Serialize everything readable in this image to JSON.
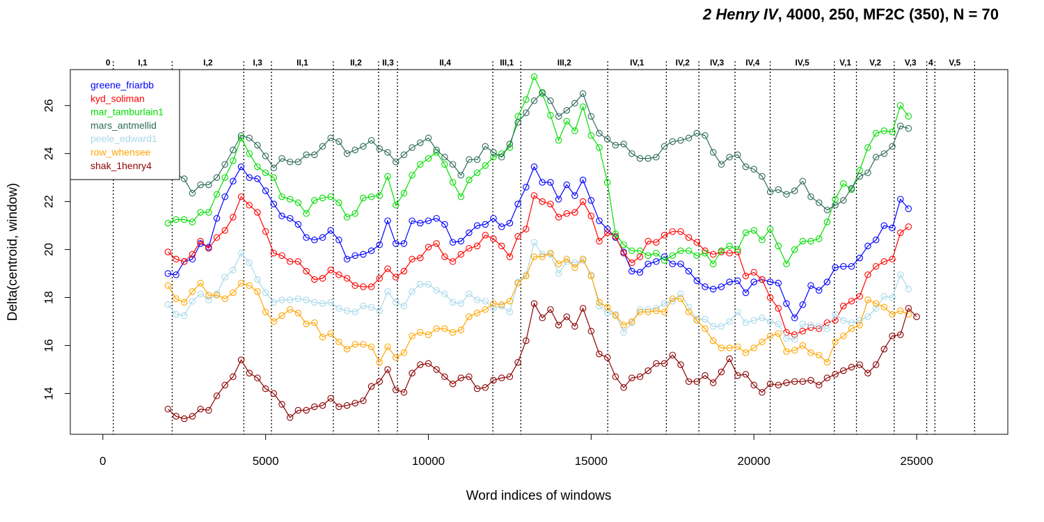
{
  "chart_data": {
    "type": "line",
    "title_italic": "2 Henry IV",
    "title_rest": ", 4000, 250, MF2C (350), N = 70",
    "xlabel": "Word indices of windows",
    "ylabel": "Delta(centroid, window)",
    "xlim": [
      -1000,
      27800
    ],
    "ylim": [
      12.3,
      27.5
    ],
    "xticks": [
      0,
      5000,
      10000,
      15000,
      20000,
      25000
    ],
    "xtick_labels": [
      "0",
      "5000",
      "10000",
      "15000",
      "20000",
      "25000"
    ],
    "yticks": [
      14,
      16,
      18,
      20,
      22,
      24,
      26
    ],
    "ytick_labels": [
      "14",
      "16",
      "18",
      "20",
      "22",
      "24",
      "26"
    ],
    "legend_position": "top-left",
    "scenes": [
      {
        "label": "0",
        "start": 0,
        "end": 320
      },
      {
        "label": "I,1",
        "start": 320,
        "end": 2130
      },
      {
        "label": "I,2",
        "start": 2130,
        "end": 4330
      },
      {
        "label": "I,3",
        "start": 4330,
        "end": 5180
      },
      {
        "label": "II,1",
        "start": 5180,
        "end": 7080
      },
      {
        "label": "II,2",
        "start": 7080,
        "end": 8470
      },
      {
        "label": "II,3",
        "start": 8470,
        "end": 9050
      },
      {
        "label": "II,4",
        "start": 9050,
        "end": 11980
      },
      {
        "label": "III,1",
        "start": 11980,
        "end": 12840
      },
      {
        "label": "III,2",
        "start": 12840,
        "end": 15510
      },
      {
        "label": "IV,1",
        "start": 15510,
        "end": 17310
      },
      {
        "label": "IV,2",
        "start": 17310,
        "end": 18310
      },
      {
        "label": "IV,3",
        "start": 18310,
        "end": 19420
      },
      {
        "label": "IV,4",
        "start": 19420,
        "end": 20500
      },
      {
        "label": "IV,5",
        "start": 20500,
        "end": 22470
      },
      {
        "label": "V,1",
        "start": 22470,
        "end": 23150
      },
      {
        "label": "V,2",
        "start": 23150,
        "end": 24310
      },
      {
        "label": "V,3",
        "start": 24310,
        "end": 25310
      },
      {
        "label": "4",
        "start": 25310,
        "end": 25560
      },
      {
        "label": "V,5",
        "start": 25560,
        "end": 26780
      }
    ],
    "scene_boundaries": [
      320,
      2130,
      4330,
      5180,
      7080,
      8470,
      9050,
      11980,
      12840,
      15510,
      17310,
      18310,
      19420,
      20500,
      22470,
      23150,
      24310,
      25310,
      25560,
      26780
    ],
    "x_start": 2000,
    "x_step": 250,
    "series": [
      {
        "name": "greene_friarbb",
        "color": "#0000ff",
        "values": [
          19.0,
          18.95,
          19.5,
          19.6,
          20.25,
          20.1,
          21.3,
          22.2,
          22.85,
          23.45,
          23.0,
          22.95,
          22.45,
          21.9,
          21.4,
          21.3,
          21.05,
          20.5,
          20.4,
          20.5,
          20.8,
          20.4,
          19.6,
          19.75,
          19.8,
          19.95,
          20.2,
          21.2,
          20.25,
          20.25,
          21.2,
          21.1,
          21.2,
          21.3,
          21.05,
          20.3,
          20.35,
          20.7,
          21.0,
          21.05,
          21.3,
          20.95,
          21.1,
          21.9,
          22.6,
          23.45,
          22.8,
          22.8,
          22.1,
          22.7,
          22.25,
          22.9,
          22.05,
          21.2,
          20.85,
          20.5,
          19.9,
          19.1,
          19.05,
          19.4,
          19.5,
          19.7,
          19.4,
          19.4,
          19.1,
          18.7,
          18.45,
          18.35,
          18.45,
          18.65,
          18.7,
          18.2,
          18.65,
          18.75,
          18.65,
          18.6,
          17.75,
          17.15,
          17.7,
          18.5,
          18.3,
          18.65,
          19.25,
          19.3,
          19.3,
          19.65,
          20.15,
          20.4,
          21.0,
          20.9,
          22.1,
          21.7
        ]
      },
      {
        "name": "kyd_soliman",
        "color": "#ff0000",
        "values": [
          19.9,
          19.6,
          19.5,
          19.8,
          20.35,
          20.05,
          20.5,
          20.8,
          21.35,
          22.2,
          21.85,
          21.55,
          20.75,
          19.85,
          19.75,
          19.5,
          19.5,
          19.1,
          18.75,
          18.8,
          19.15,
          18.95,
          18.8,
          18.5,
          18.45,
          18.45,
          18.8,
          19.2,
          18.85,
          19.1,
          19.6,
          19.65,
          20.1,
          20.25,
          19.7,
          19.5,
          19.8,
          20.05,
          20.15,
          20.6,
          20.45,
          20.15,
          19.7,
          20.55,
          20.85,
          22.25,
          22.0,
          21.9,
          21.35,
          21.5,
          21.55,
          22.0,
          21.4,
          20.35,
          20.7,
          20.55,
          19.85,
          19.45,
          19.7,
          20.35,
          20.3,
          20.6,
          20.75,
          20.75,
          20.5,
          20.3,
          19.95,
          19.8,
          19.9,
          19.85,
          19.9,
          18.9,
          19.05,
          18.75,
          18.0,
          17.55,
          16.55,
          16.45,
          16.6,
          16.75,
          16.7,
          16.95,
          17.05,
          17.65,
          17.85,
          18.05,
          18.95,
          19.3,
          19.5,
          19.6,
          20.7,
          20.95
        ]
      },
      {
        "name": "mar_tamburlain1",
        "color": "#00dd00",
        "values": [
          21.1,
          21.25,
          21.25,
          21.15,
          21.55,
          21.55,
          22.3,
          23.0,
          23.7,
          24.65,
          24.0,
          23.45,
          23.2,
          23.0,
          22.2,
          22.1,
          21.95,
          21.5,
          22.05,
          22.15,
          22.2,
          21.95,
          21.35,
          21.5,
          22.15,
          22.2,
          22.25,
          23.05,
          21.85,
          22.35,
          23.1,
          23.55,
          23.8,
          24.05,
          23.55,
          22.8,
          22.2,
          22.9,
          23.2,
          23.5,
          23.85,
          24.0,
          24.25,
          25.55,
          26.25,
          27.2,
          26.5,
          25.6,
          24.55,
          25.35,
          24.95,
          25.95,
          24.75,
          24.25,
          22.8,
          20.65,
          20.2,
          19.95,
          19.95,
          19.75,
          19.85,
          19.55,
          19.75,
          19.95,
          19.95,
          19.75,
          19.85,
          19.4,
          19.95,
          20.15,
          20.0,
          20.7,
          20.8,
          20.4,
          20.85,
          20.15,
          19.4,
          20.0,
          20.35,
          20.35,
          20.45,
          21.15,
          22.1,
          22.75,
          22.5,
          23.3,
          24.25,
          24.85,
          24.95,
          24.9,
          26.0,
          25.55
        ]
      },
      {
        "name": "mars_antmellid",
        "color": "#2e6b5b",
        "values": [
          23.2,
          23.15,
          22.95,
          22.35,
          22.7,
          22.7,
          23.0,
          23.55,
          24.15,
          24.75,
          24.65,
          24.35,
          23.9,
          23.4,
          23.8,
          23.65,
          23.65,
          23.95,
          23.95,
          24.3,
          24.65,
          24.5,
          24.0,
          24.15,
          24.3,
          24.55,
          24.2,
          24.05,
          23.65,
          23.95,
          24.25,
          24.45,
          24.65,
          24.15,
          23.85,
          23.55,
          23.1,
          23.75,
          23.75,
          24.3,
          24.05,
          23.85,
          24.4,
          25.3,
          25.7,
          26.2,
          26.55,
          26.2,
          25.55,
          25.8,
          26.1,
          26.5,
          25.55,
          24.85,
          24.6,
          24.35,
          24.4,
          24.0,
          23.8,
          23.8,
          23.85,
          24.3,
          24.5,
          24.55,
          24.65,
          24.85,
          24.75,
          24.05,
          23.55,
          23.85,
          23.95,
          23.45,
          23.35,
          23.05,
          22.4,
          22.5,
          22.3,
          22.45,
          22.85,
          22.2,
          21.95,
          21.65,
          21.85,
          22.05,
          22.55,
          23.05,
          23.2,
          23.85,
          24.0,
          24.3,
          25.15,
          25.05
        ]
      },
      {
        "name": "peele_edward1",
        "color": "#a8d8ea",
        "values": [
          17.7,
          17.3,
          17.25,
          17.85,
          18.15,
          17.9,
          18.15,
          18.85,
          19.15,
          19.85,
          19.45,
          18.75,
          18.2,
          17.8,
          17.9,
          17.9,
          17.95,
          17.9,
          17.8,
          17.75,
          17.8,
          17.55,
          17.45,
          17.4,
          17.65,
          17.6,
          17.45,
          18.25,
          17.8,
          17.65,
          18.25,
          18.55,
          18.55,
          18.3,
          18.15,
          17.8,
          17.75,
          18.15,
          17.9,
          17.85,
          17.55,
          17.65,
          17.4,
          18.65,
          18.95,
          20.3,
          19.8,
          19.8,
          19.0,
          19.5,
          19.45,
          19.55,
          18.95,
          17.65,
          17.35,
          17.3,
          16.55,
          16.95,
          17.5,
          17.5,
          17.55,
          17.75,
          17.85,
          18.15,
          17.6,
          17.1,
          17.1,
          16.8,
          16.8,
          17.0,
          17.4,
          16.95,
          17.05,
          17.15,
          17.0,
          16.9,
          16.3,
          16.25,
          16.9,
          16.85,
          16.8,
          16.7,
          17.3,
          17.05,
          16.95,
          17.05,
          17.2,
          17.55,
          18.05,
          18.0,
          18.95,
          18.35
        ]
      },
      {
        "name": "row_whensee",
        "color": "#ffa500",
        "values": [
          18.5,
          17.95,
          17.8,
          18.25,
          18.6,
          18.1,
          18.1,
          17.95,
          18.2,
          18.6,
          18.5,
          18.25,
          17.4,
          17.0,
          17.25,
          17.5,
          17.35,
          16.9,
          16.95,
          16.35,
          16.5,
          16.15,
          15.85,
          16.05,
          16.05,
          15.95,
          15.3,
          15.95,
          15.5,
          15.7,
          16.4,
          16.55,
          16.45,
          16.7,
          16.7,
          16.55,
          16.65,
          17.2,
          17.35,
          17.5,
          17.75,
          17.7,
          17.85,
          18.6,
          18.9,
          19.7,
          19.7,
          19.85,
          19.4,
          19.6,
          19.25,
          19.6,
          18.9,
          17.8,
          17.6,
          17.25,
          16.85,
          17.0,
          17.4,
          17.4,
          17.45,
          17.4,
          17.95,
          17.95,
          17.4,
          17.05,
          16.7,
          16.2,
          15.9,
          15.9,
          15.95,
          15.7,
          15.9,
          16.15,
          16.4,
          16.5,
          15.75,
          15.8,
          16.0,
          15.7,
          15.6,
          15.3,
          16.15,
          16.4,
          16.7,
          16.85,
          17.9,
          17.75,
          17.6,
          17.3,
          17.45,
          17.3
        ]
      },
      {
        "name": "shak_1henry4",
        "color": "#8b0000",
        "values": [
          13.35,
          13.05,
          12.95,
          13.05,
          13.35,
          13.3,
          13.9,
          14.35,
          14.7,
          15.4,
          14.85,
          14.65,
          14.2,
          14.0,
          13.55,
          13.0,
          13.3,
          13.3,
          13.45,
          13.5,
          13.8,
          13.45,
          13.5,
          13.6,
          13.7,
          14.3,
          14.5,
          15.0,
          14.15,
          14.05,
          14.85,
          15.2,
          15.25,
          15.0,
          14.7,
          14.4,
          14.65,
          14.7,
          14.2,
          14.25,
          14.55,
          14.65,
          14.7,
          15.3,
          16.2,
          17.75,
          17.15,
          17.5,
          16.85,
          17.2,
          16.8,
          17.55,
          16.6,
          15.65,
          15.5,
          14.7,
          14.25,
          14.65,
          14.7,
          14.95,
          15.25,
          15.25,
          15.6,
          15.2,
          14.5,
          14.5,
          14.75,
          14.45,
          14.9,
          15.45,
          14.75,
          14.8,
          14.35,
          14.05,
          14.4,
          14.35,
          14.45,
          14.5,
          14.5,
          14.55,
          14.35,
          14.65,
          14.8,
          14.95,
          15.1,
          15.2,
          14.85,
          15.2,
          15.85,
          16.4,
          16.45,
          17.55,
          17.2
        ]
      }
    ]
  }
}
